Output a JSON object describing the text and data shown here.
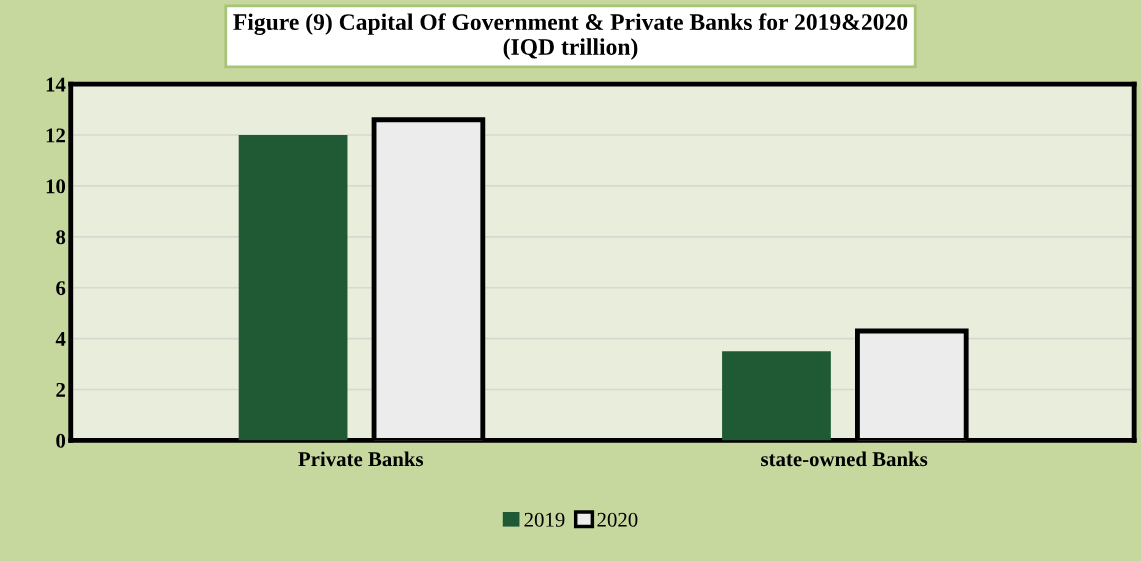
{
  "chart_data": {
    "type": "bar",
    "title": "Figure (9) Capital Of Government & Private Banks for 2019&2020\n(IQD trillion)",
    "categories": [
      "Private Banks",
      "state-owned Banks"
    ],
    "series": [
      {
        "name": "2019",
        "color": "#1f5a35",
        "values": [
          12,
          3.5
        ]
      },
      {
        "name": "2020",
        "color": "#ececec",
        "values": [
          12.6,
          4.3
        ]
      }
    ],
    "ylim": [
      0,
      14
    ],
    "yticks": [
      0,
      2,
      4,
      6,
      8,
      10,
      12,
      14
    ],
    "grid": "y",
    "legend": "bottom"
  }
}
